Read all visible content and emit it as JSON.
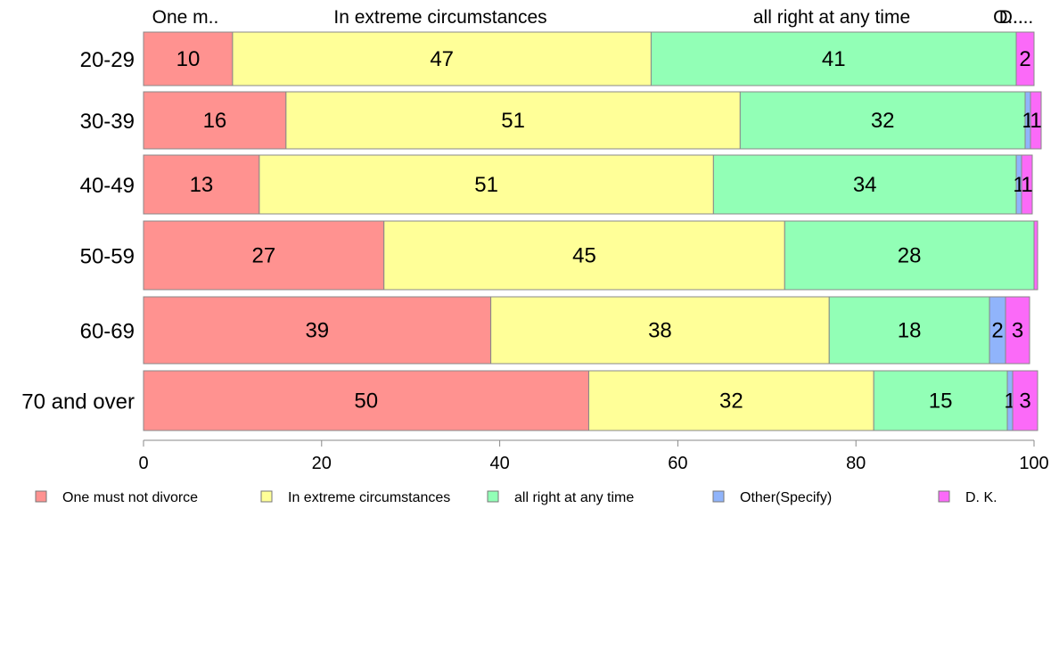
{
  "chart_data": {
    "type": "bar",
    "orientation": "horizontal",
    "stacked": true,
    "categories": [
      "20-29",
      "30-39",
      "40-49",
      "50-59",
      "60-69",
      "70 and over"
    ],
    "top_labels": [
      "One m..",
      "In extreme circumstances",
      "all right at any time",
      "O...",
      "D...."
    ],
    "series": [
      {
        "name": "One must not divorce",
        "color": "#ff9290",
        "values": [
          10,
          16,
          13,
          27,
          39,
          50
        ],
        "labels": [
          "10",
          "16",
          "13",
          "27",
          "39",
          "50"
        ]
      },
      {
        "name": "In extreme circumstances",
        "color": "#ffff98",
        "values": [
          47,
          51,
          51,
          45,
          38,
          32
        ],
        "labels": [
          "47",
          "51",
          "51",
          "45",
          "38",
          "32"
        ]
      },
      {
        "name": "all right at any time",
        "color": "#92ffb6",
        "values": [
          41,
          32,
          34,
          28,
          18,
          15
        ],
        "labels": [
          "41",
          "32",
          "34",
          "28",
          "18",
          "15"
        ]
      },
      {
        "name": "Other(Specify)",
        "color": "#90b4fb",
        "values": [
          0,
          0.6,
          0.6,
          0,
          1.8,
          0.6
        ],
        "labels": [
          "",
          "1",
          "1",
          "",
          "2",
          "1"
        ]
      },
      {
        "name": "D. K.",
        "color": "#fb6af8",
        "values": [
          2,
          1.2,
          1.2,
          0.4,
          2.7,
          2.8
        ],
        "labels": [
          "2",
          "1",
          "1",
          "",
          "3",
          "3"
        ]
      }
    ],
    "xlim": [
      0,
      100
    ],
    "xticks": [
      "0",
      "20",
      "40",
      "60",
      "80",
      "100"
    ],
    "legend_position": "bottom",
    "grid": false
  }
}
